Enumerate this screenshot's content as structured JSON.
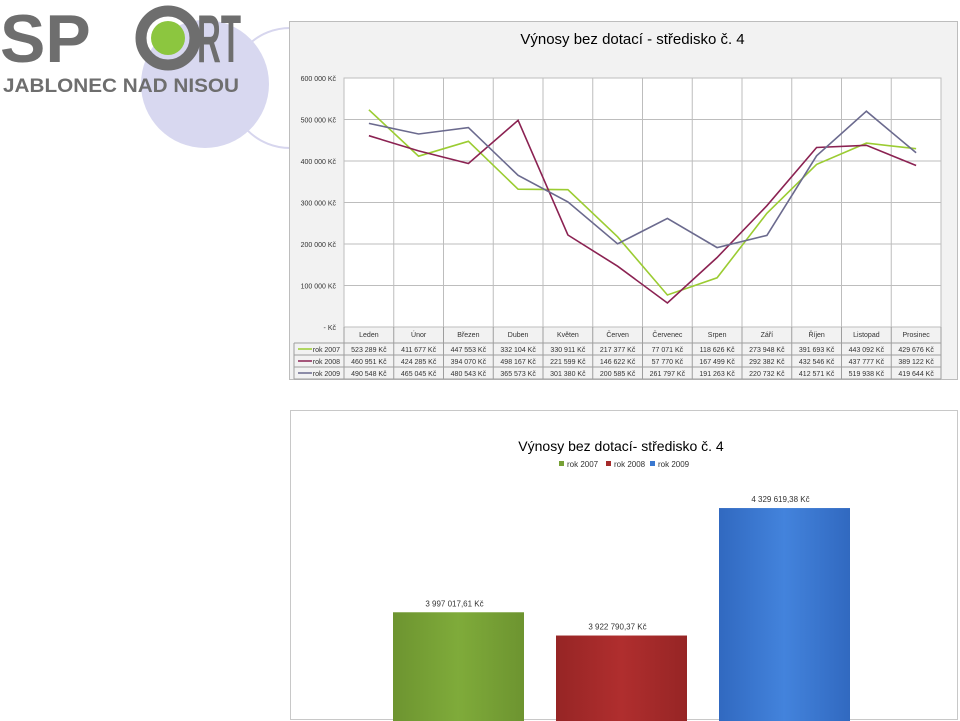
{
  "logo": {
    "line1_left": "SP",
    "line1_right": "RT",
    "line2": "JABLONEC NAD NISOU"
  },
  "chart_data": [
    {
      "type": "line",
      "title": "Výnosy bez dotací - středisko č. 4",
      "ylim": [
        0,
        600000
      ],
      "y_ticks": [
        "600 000 Kč",
        "500 000 Kč",
        "400 000 Kč",
        "300 000 Kč",
        "200 000 Kč",
        "100 000 Kč",
        "- Kč"
      ],
      "grid": true,
      "legend": "table-below",
      "categories": [
        "Leden",
        "Únor",
        "Březen",
        "Duben",
        "Květen",
        "Červen",
        "Červenec",
        "Srpen",
        "Září",
        "Říjen",
        "Listopad",
        "Prosinec"
      ],
      "series": [
        {
          "name": "rok 2007",
          "color": "#9bcc32",
          "values": [
            523289,
            411677,
            447553,
            332104,
            330911,
            217377,
            77071,
            118626,
            273948,
            391693,
            443092,
            429676
          ],
          "labels": [
            "523 289 Kč",
            "411 677 Kč",
            "447 553 Kč",
            "332 104 Kč",
            "330 911 Kč",
            "217 377 Kč",
            "77 071 Kč",
            "118 626 Kč",
            "273 948 Kč",
            "391 693 Kč",
            "443 092 Kč",
            "429 676 Kč"
          ]
        },
        {
          "name": "rok 2008",
          "color": "#8b2252",
          "values": [
            460951,
            424285,
            394070,
            498167,
            221599,
            146622,
            57770,
            167499,
            292382,
            432546,
            437777,
            389122
          ],
          "labels": [
            "460 951 Kč",
            "424 285 Kč",
            "394 070 Kč",
            "498 167 Kč",
            "221 599 Kč",
            "146 622 Kč",
            "57 770 Kč",
            "167 499 Kč",
            "292 382 Kč",
            "432 546 Kč",
            "437 777 Kč",
            "389 122 Kč"
          ]
        },
        {
          "name": "rok 2009",
          "color": "#6b6a8e",
          "values": [
            490548,
            465045,
            480543,
            365573,
            301380,
            200585,
            261797,
            191263,
            220732,
            412571,
            519938,
            419644
          ],
          "labels": [
            "490 548 Kč",
            "465 045 Kč",
            "480 543 Kč",
            "365 573 Kč",
            "301 380 Kč",
            "200 585 Kč",
            "261 797 Kč",
            "191 263 Kč",
            "220 732 Kč",
            "412 571 Kč",
            "519 938 Kč",
            "419 644 Kč"
          ]
        }
      ]
    },
    {
      "type": "bar",
      "title": "Výnosy bez dotací- středisko č. 4",
      "legend": "top",
      "ylim": [
        3650000,
        4400000
      ],
      "series": [
        {
          "name": "rok 2007",
          "color": "#77a135",
          "value": 3997017.61,
          "label": "3 997 017,61 Kč"
        },
        {
          "name": "rok 2008",
          "color": "#a52a2a",
          "value": 3922790.37,
          "label": "3 922 790,37 Kč"
        },
        {
          "name": "rok 2009",
          "color": "#3a78d0",
          "value": 4329619.38,
          "label": "4 329 619,38 Kč"
        }
      ]
    }
  ]
}
